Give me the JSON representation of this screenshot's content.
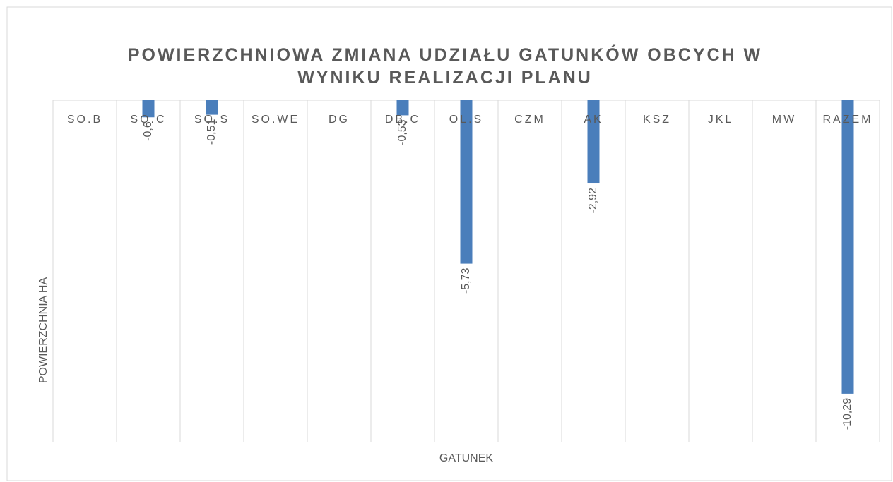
{
  "chart_data": {
    "type": "bar",
    "title": "POWIERZCHNIOWA ZMIANA UDZIAŁU GATUNKÓW OBCYCH W WYNIKU REALIZACJI PLANU",
    "x_label": "GATUNEK",
    "y_label": "POWIERZCHNIA HA",
    "categories": [
      "SO.B",
      "SO.C",
      "SO.S",
      "SO.WE",
      "DG",
      "DB.C",
      "OL.S",
      "CZM",
      "AK",
      "KSZ",
      "JKL",
      "MW",
      "RAZEM"
    ],
    "values": [
      null,
      -0.6,
      -0.51,
      null,
      null,
      -0.53,
      -5.73,
      null,
      -2.92,
      null,
      null,
      null,
      -10.29
    ],
    "value_labels": [
      null,
      "-0,6",
      "-0,51",
      null,
      null,
      "-0,53",
      "-5,73",
      null,
      "-2,92",
      null,
      null,
      null,
      "-10,29"
    ],
    "color": "#4a7ebb",
    "ylim": [
      -12,
      0
    ]
  }
}
